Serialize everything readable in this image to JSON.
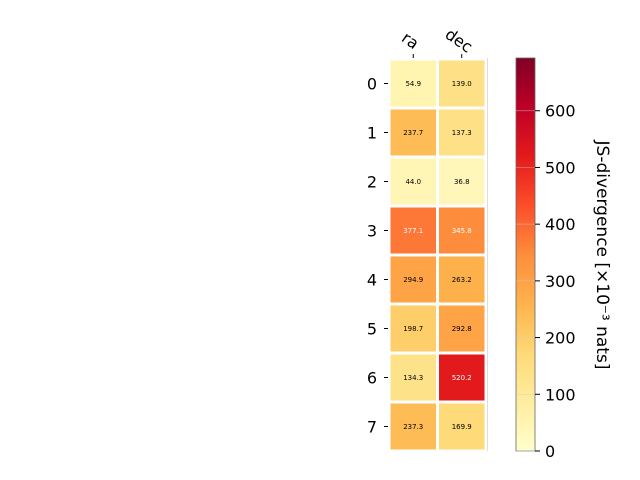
{
  "chart_data": {
    "type": "heatmap",
    "columns": [
      "ra",
      "dec"
    ],
    "rows": [
      "0",
      "1",
      "2",
      "3",
      "4",
      "5",
      "6",
      "7"
    ],
    "values": [
      [
        54.9,
        139.0
      ],
      [
        237.7,
        137.3
      ],
      [
        44.0,
        36.8
      ],
      [
        377.1,
        345.8
      ],
      [
        294.9,
        263.2
      ],
      [
        198.7,
        292.8
      ],
      [
        134.3,
        520.2
      ],
      [
        237.3,
        169.9
      ]
    ],
    "value_labels": [
      [
        "54.9",
        "139.0"
      ],
      [
        "237.7",
        "137.3"
      ],
      [
        "44.0",
        "36.8"
      ],
      [
        "377.1",
        "345.8"
      ],
      [
        "294.9",
        "263.2"
      ],
      [
        "198.7",
        "292.8"
      ],
      [
        "134.3",
        "520.2"
      ],
      [
        "237.3",
        "169.9"
      ]
    ],
    "colorbar": {
      "label": "JS-divergence [×10⁻³ nats]",
      "range": [
        0,
        693
      ],
      "ticks": [
        0,
        100,
        200,
        300,
        400,
        500,
        600
      ],
      "colormap": "YlOrRd"
    }
  }
}
